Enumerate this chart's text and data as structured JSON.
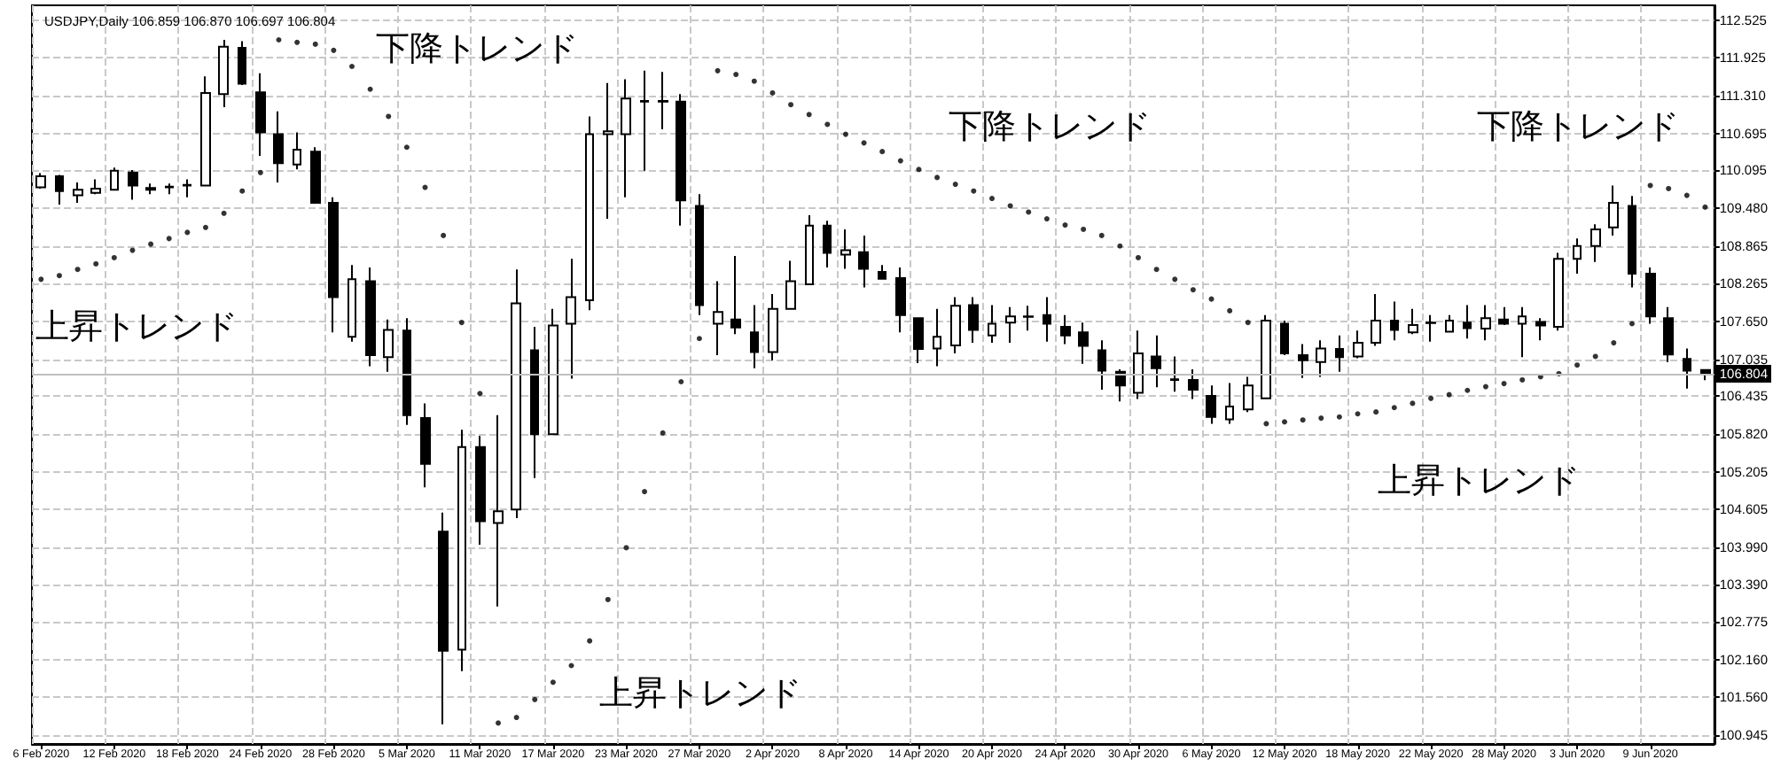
{
  "chart_data": {
    "type": "candlestick",
    "title": "USDJPY,Daily 106.859 106.870 106.697 106.804",
    "categories": [
      "6 Feb 2020",
      null,
      null,
      null,
      "12 Feb 2020",
      null,
      null,
      null,
      "18 Feb 2020",
      null,
      null,
      null,
      "24 Feb 2020",
      null,
      null,
      null,
      "28 Feb 2020",
      null,
      null,
      null,
      "5 Mar 2020",
      null,
      null,
      null,
      "11 Mar 2020",
      null,
      null,
      null,
      "17 Mar 2020",
      null,
      null,
      null,
      "23 Mar 2020",
      null,
      null,
      null,
      "27 Mar 2020",
      null,
      null,
      null,
      "2 Apr 2020",
      null,
      null,
      null,
      "8 Apr 2020",
      null,
      null,
      null,
      "14 Apr 2020",
      null,
      null,
      null,
      "20 Apr 2020",
      null,
      null,
      null,
      "24 Apr 2020",
      null,
      null,
      null,
      "30 Apr 2020",
      null,
      null,
      null,
      "6 May 2020",
      null,
      null,
      null,
      "12 May 2020",
      null,
      null,
      null,
      "18 May 2020",
      null,
      null,
      null,
      "22 May 2020",
      null,
      null,
      null,
      "28 May 2020",
      null,
      null,
      null,
      "3 Jun 2020",
      null,
      null,
      null,
      "9 Jun 2020",
      null,
      null,
      null
    ],
    "series": [
      {
        "type": "candlestick",
        "color": "#000000",
        "ohlc": [
          [
            109.82,
            110.05,
            109.8,
            110.0
          ],
          [
            110.0,
            110.02,
            109.54,
            109.76
          ],
          [
            109.69,
            109.9,
            109.57,
            109.78
          ],
          [
            109.73,
            109.95,
            109.71,
            109.8
          ],
          [
            109.78,
            110.14,
            109.77,
            110.09
          ],
          [
            110.06,
            110.1,
            109.62,
            109.85
          ],
          [
            109.81,
            109.88,
            109.71,
            109.78
          ],
          [
            109.82,
            109.88,
            109.71,
            109.83
          ],
          [
            109.86,
            109.95,
            109.66,
            109.85
          ],
          [
            109.85,
            111.62,
            109.84,
            111.35
          ],
          [
            111.33,
            112.21,
            111.12,
            112.1
          ],
          [
            112.08,
            112.19,
            111.48,
            111.5
          ],
          [
            111.36,
            111.67,
            110.33,
            110.71
          ],
          [
            110.68,
            111.05,
            109.9,
            110.21
          ],
          [
            110.19,
            110.71,
            110.11,
            110.43
          ],
          [
            110.4,
            110.47,
            109.57,
            109.57
          ],
          [
            109.57,
            109.66,
            107.47,
            108.04
          ],
          [
            107.4,
            108.56,
            107.32,
            108.33
          ],
          [
            108.3,
            108.52,
            106.92,
            107.1
          ],
          [
            107.07,
            107.68,
            106.83,
            107.51
          ],
          [
            107.5,
            107.7,
            105.97,
            106.13
          ],
          [
            106.08,
            106.32,
            104.96,
            105.34
          ],
          [
            104.24,
            104.55,
            101.12,
            102.31
          ],
          [
            102.33,
            105.89,
            101.98,
            105.61
          ],
          [
            105.61,
            105.79,
            104.03,
            104.41
          ],
          [
            104.38,
            106.13,
            103.03,
            104.57
          ],
          [
            104.6,
            108.49,
            104.46,
            107.94
          ],
          [
            107.18,
            107.56,
            105.11,
            105.82
          ],
          [
            105.82,
            107.85,
            105.82,
            107.58
          ],
          [
            107.61,
            108.66,
            106.72,
            108.04
          ],
          [
            107.99,
            110.97,
            107.83,
            110.68
          ],
          [
            110.68,
            111.51,
            109.31,
            110.73
          ],
          [
            110.68,
            111.57,
            109.66,
            111.26
          ],
          [
            111.21,
            111.71,
            110.09,
            111.22
          ],
          [
            111.22,
            111.69,
            110.76,
            111.21
          ],
          [
            111.21,
            111.33,
            109.2,
            109.61
          ],
          [
            109.52,
            109.71,
            107.75,
            107.91
          ],
          [
            107.61,
            108.3,
            107.1,
            107.8
          ],
          [
            107.68,
            108.71,
            107.44,
            107.55
          ],
          [
            107.47,
            107.91,
            106.89,
            107.15
          ],
          [
            107.15,
            108.09,
            107.02,
            107.85
          ],
          [
            107.85,
            108.63,
            107.85,
            108.3
          ],
          [
            108.25,
            109.37,
            108.25,
            109.2
          ],
          [
            109.2,
            109.28,
            108.52,
            108.76
          ],
          [
            108.73,
            109.14,
            108.5,
            108.8
          ],
          [
            108.77,
            109.04,
            108.2,
            108.5
          ],
          [
            108.45,
            108.56,
            108.34,
            108.34
          ],
          [
            108.35,
            108.52,
            107.47,
            107.75
          ],
          [
            107.7,
            107.7,
            106.97,
            107.2
          ],
          [
            107.21,
            107.85,
            106.92,
            107.4
          ],
          [
            107.26,
            108.04,
            107.13,
            107.9
          ],
          [
            107.91,
            108.04,
            107.3,
            107.51
          ],
          [
            107.42,
            107.91,
            107.3,
            107.61
          ],
          [
            107.63,
            107.88,
            107.3,
            107.73
          ],
          [
            107.73,
            107.9,
            107.5,
            107.72
          ],
          [
            107.75,
            108.04,
            107.32,
            107.61
          ],
          [
            107.56,
            107.75,
            107.28,
            107.42
          ],
          [
            107.47,
            107.63,
            106.96,
            107.25
          ],
          [
            107.18,
            107.34,
            106.54,
            106.85
          ],
          [
            106.83,
            106.87,
            106.35,
            106.61
          ],
          [
            106.49,
            107.5,
            106.39,
            107.13
          ],
          [
            107.08,
            107.42,
            106.58,
            106.89
          ],
          [
            106.71,
            107.08,
            106.51,
            106.7
          ],
          [
            106.7,
            106.87,
            106.39,
            106.54
          ],
          [
            106.44,
            106.61,
            105.99,
            106.1
          ],
          [
            106.06,
            106.65,
            105.99,
            106.27
          ],
          [
            106.22,
            106.75,
            106.18,
            106.61
          ],
          [
            106.4,
            107.75,
            106.4,
            107.66
          ],
          [
            107.61,
            107.66,
            107.1,
            107.13
          ],
          [
            107.1,
            107.28,
            106.73,
            107.02
          ],
          [
            106.99,
            107.34,
            106.75,
            107.21
          ],
          [
            107.2,
            107.42,
            106.83,
            107.07
          ],
          [
            107.08,
            107.5,
            107.05,
            107.3
          ],
          [
            107.3,
            108.09,
            107.25,
            107.66
          ],
          [
            107.66,
            107.97,
            107.34,
            107.51
          ],
          [
            107.47,
            107.85,
            107.44,
            107.59
          ],
          [
            107.62,
            107.75,
            107.32,
            107.63
          ],
          [
            107.48,
            107.75,
            107.47,
            107.66
          ],
          [
            107.63,
            107.91,
            107.37,
            107.54
          ],
          [
            107.53,
            107.91,
            107.34,
            107.7
          ],
          [
            107.68,
            107.88,
            107.59,
            107.61
          ],
          [
            107.61,
            107.88,
            107.07,
            107.73
          ],
          [
            107.64,
            107.7,
            107.34,
            107.58
          ],
          [
            107.56,
            108.76,
            107.5,
            108.66
          ],
          [
            108.66,
            108.99,
            108.42,
            108.87
          ],
          [
            108.87,
            109.22,
            108.61,
            109.14
          ],
          [
            109.17,
            109.85,
            109.04,
            109.57
          ],
          [
            109.52,
            109.68,
            108.2,
            108.42
          ],
          [
            108.42,
            108.52,
            107.61,
            107.73
          ],
          [
            107.7,
            107.88,
            106.99,
            107.11
          ],
          [
            107.04,
            107.21,
            106.56,
            106.85
          ],
          [
            106.859,
            106.87,
            106.697,
            106.804
          ]
        ]
      },
      {
        "type": "scatter",
        "color": "#000000",
        "values": [
          108.33,
          108.39,
          108.49,
          108.58,
          108.68,
          108.8,
          108.9,
          108.99,
          109.09,
          109.17,
          109.4,
          109.76,
          110.06,
          112.21,
          112.17,
          112.14,
          112.04,
          111.78,
          111.41,
          110.97,
          110.47,
          109.82,
          109.04,
          107.63,
          106.48,
          101.14,
          101.23,
          101.52,
          101.8,
          102.07,
          102.47,
          103.14,
          103.98,
          104.89,
          105.84,
          106.67,
          107.37,
          111.71,
          111.65,
          111.54,
          111.35,
          111.16,
          111.0,
          110.84,
          110.68,
          110.54,
          110.4,
          110.25,
          110.11,
          109.98,
          109.87,
          109.76,
          109.64,
          109.52,
          109.42,
          109.31,
          109.21,
          109.14,
          109.04,
          108.87,
          108.68,
          108.49,
          108.33,
          108.16,
          108.01,
          107.82,
          107.63,
          105.99,
          106.02,
          106.05,
          106.08,
          106.1,
          106.15,
          106.18,
          106.25,
          106.32,
          106.4,
          106.46,
          106.53,
          106.59,
          106.64,
          106.7,
          106.75,
          106.8,
          106.94,
          107.08,
          107.3,
          107.61,
          109.85,
          109.8,
          109.69,
          109.5
        ]
      }
    ],
    "marker": "circle",
    "ylim": [
      100.8,
      112.77
    ],
    "yticks": [
      100.945,
      {
        "value": 101.56,
        "label": "101.560"
      },
      {
        "value": 102.16,
        "label": "102.160"
      },
      102.775,
      {
        "value": 103.39,
        "label": "103.390"
      },
      {
        "value": 103.99,
        "label": "103.990"
      },
      104.605,
      105.205,
      {
        "value": 105.82,
        "label": "105.820"
      },
      106.435,
      107.035,
      {
        "value": 107.65,
        "label": "107.650"
      },
      108.265,
      108.865,
      {
        "value": 109.48,
        "label": "109.480"
      },
      110.095,
      110.695,
      {
        "value": 111.31,
        "label": "111.310"
      },
      111.925,
      112.525
    ],
    "ref_lines": [
      {
        "axis": "y",
        "value": 106.804,
        "label": "106.804",
        "color": "#c0c0c0"
      }
    ],
    "annotations": [
      "下降トレンド",
      "下降トレンド",
      "下降トレンド",
      "上昇トレンド",
      "上昇トレンド",
      "上昇トレンド"
    ],
    "grid": true
  }
}
